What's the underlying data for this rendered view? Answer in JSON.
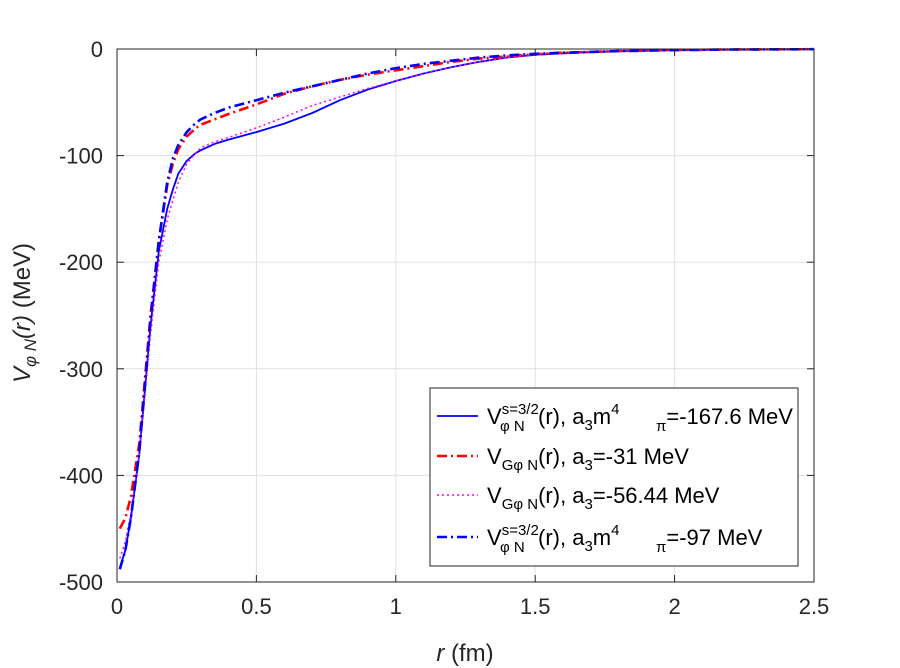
{
  "chart_data": {
    "type": "line",
    "title": "",
    "xlabel": {
      "var": "r",
      "unit": " (fm)"
    },
    "ylabel": {
      "base": "V",
      "sub": "φ N",
      "arg": "(r)",
      "unit": " (MeV)"
    },
    "xlim": [
      0,
      2.5
    ],
    "ylim": [
      -500,
      0
    ],
    "xticks": [
      0,
      0.5,
      1,
      1.5,
      2,
      2.5
    ],
    "xtick_labels": [
      "0",
      "0.5",
      "1",
      "1.5",
      "2",
      "2.5"
    ],
    "yticks": [
      0,
      -100,
      -200,
      -300,
      -400,
      -500
    ],
    "ytick_labels": [
      "0",
      "-100",
      "-200",
      "-300",
      "-400",
      "-500"
    ],
    "grid": true,
    "legend_position": "lower-right",
    "series": [
      {
        "name": "V_φN^{s=3/2}(r), a_3 m_π^4=-167.6 MeV",
        "legend": {
          "main": "V",
          "sup": "s=3/2",
          "sub": "φ N",
          "arg": "(r), a",
          "sub2": "3",
          "mid": "m",
          "sup2": "4",
          "sub3": "π",
          "tail": "=-167.6 MeV"
        },
        "color": "#0000ff",
        "style": "solid",
        "x": [
          0.01,
          0.03,
          0.05,
          0.08,
          0.1,
          0.12,
          0.15,
          0.18,
          0.2,
          0.22,
          0.25,
          0.28,
          0.3,
          0.35,
          0.4,
          0.5,
          0.6,
          0.7,
          0.8,
          0.9,
          1.0,
          1.1,
          1.2,
          1.3,
          1.4,
          1.5,
          1.6,
          1.8,
          2.0,
          2.2,
          2.5
        ],
        "y": [
          -487,
          -470,
          -440,
          -380,
          -320,
          -260,
          -190,
          -150,
          -132,
          -117,
          -105,
          -98,
          -95,
          -89,
          -85,
          -78,
          -70,
          -60,
          -48,
          -38,
          -30,
          -23,
          -17,
          -12,
          -8,
          -5.5,
          -4,
          -2,
          -1,
          -0.5,
          -0.2
        ]
      },
      {
        "name": "V_GφN(r), a_3=-31 MeV",
        "legend": {
          "main": "V",
          "sub": "Gφ N",
          "arg": "(r), a",
          "sub2": "3",
          "tail": "=-31 MeV"
        },
        "color": "#ff0000",
        "style": "dashdot",
        "x": [
          0.01,
          0.03,
          0.05,
          0.08,
          0.1,
          0.12,
          0.15,
          0.18,
          0.2,
          0.22,
          0.25,
          0.28,
          0.3,
          0.35,
          0.4,
          0.5,
          0.6,
          0.7,
          0.8,
          0.9,
          1.0,
          1.1,
          1.2,
          1.3,
          1.4,
          1.5,
          1.6,
          1.8,
          2.0,
          2.2,
          2.5
        ],
        "y": [
          -450,
          -440,
          -420,
          -370,
          -310,
          -250,
          -180,
          -128,
          -108,
          -94,
          -82,
          -75,
          -71,
          -66,
          -61,
          -52,
          -42,
          -35,
          -29,
          -24,
          -20,
          -16,
          -12,
          -9,
          -7,
          -5,
          -3.5,
          -2,
          -1,
          -0.5,
          -0.2
        ]
      },
      {
        "name": "V_GφN(r), a_3=-56.44 MeV",
        "legend": {
          "main": "V",
          "sub": "Gφ N",
          "arg": "(r), a",
          "sub2": "3",
          "tail": "=-56.44 MeV"
        },
        "color": "#ff00ff",
        "style": "dotted",
        "x": [
          0.01,
          0.03,
          0.05,
          0.08,
          0.1,
          0.12,
          0.15,
          0.18,
          0.2,
          0.22,
          0.25,
          0.28,
          0.3,
          0.35,
          0.4,
          0.5,
          0.6,
          0.7,
          0.8,
          0.9,
          1.0,
          1.1,
          1.2,
          1.3,
          1.4,
          1.5,
          1.6,
          1.8,
          2.0,
          2.2,
          2.5
        ],
        "y": [
          -478,
          -462,
          -435,
          -380,
          -325,
          -268,
          -200,
          -160,
          -142,
          -125,
          -108,
          -98,
          -93,
          -87,
          -83,
          -74,
          -64,
          -53,
          -45,
          -37,
          -30,
          -23,
          -17,
          -12,
          -8,
          -5.5,
          -4,
          -2,
          -1,
          -0.5,
          -0.2
        ]
      },
      {
        "name": "V_φN^{s=3/2}(r), a_3 m_π^4=-97 MeV",
        "legend": {
          "main": "V",
          "sup": "s=3/2",
          "sub": "φ N",
          "arg": "(r), a",
          "sub2": "3",
          "mid": "m",
          "sup2": "4",
          "sub3": "π",
          "tail": "=-97 MeV"
        },
        "color": "#0000ff",
        "style": "dashdot",
        "x": [
          0.01,
          0.03,
          0.05,
          0.08,
          0.1,
          0.12,
          0.15,
          0.18,
          0.2,
          0.22,
          0.25,
          0.28,
          0.3,
          0.35,
          0.4,
          0.5,
          0.6,
          0.7,
          0.8,
          0.9,
          1.0,
          1.1,
          1.2,
          1.3,
          1.4,
          1.5,
          1.6,
          1.8,
          2.0,
          2.2,
          2.5
        ],
        "y": [
          -488,
          -470,
          -440,
          -378,
          -316,
          -254,
          -180,
          -125,
          -103,
          -90,
          -78,
          -70,
          -66,
          -60,
          -55,
          -48,
          -41,
          -35,
          -29,
          -23,
          -18,
          -14,
          -11,
          -8,
          -6,
          -4.5,
          -3.5,
          -2,
          -1,
          -0.5,
          -0.2
        ]
      }
    ]
  }
}
